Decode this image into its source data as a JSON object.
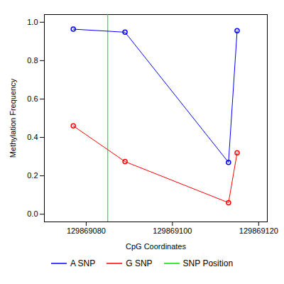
{
  "chart_data": {
    "type": "line",
    "x_label": "CpG Coordinates",
    "y_label": "Methylation Frequency",
    "xlim": [
      129869070.3,
      129869122
    ],
    "xticks": [
      129869080,
      129869100,
      129869120
    ],
    "ylim": [
      -0.04,
      1.04
    ],
    "yticks": [
      {
        "value": 0,
        "label": "0.0"
      },
      0.2,
      0.4,
      0.6,
      0.8,
      {
        "value": 1,
        "label": "1.0"
      }
    ],
    "series": [
      {
        "name": "A SNP",
        "color": "#0000ff",
        "marker": "circle",
        "line_style": "solid",
        "x": [
          129869077,
          129869089,
          129869113,
          129869115
        ],
        "values": [
          0.964,
          0.948,
          0.27,
          0.956
        ]
      },
      {
        "name": "G SNP",
        "color": "#ff0000",
        "marker": "circle",
        "line_style": "solid",
        "x": [
          129869077,
          129869089,
          129869113,
          129869115
        ],
        "values": [
          0.46,
          0.274,
          0.06,
          0.32
        ]
      }
    ],
    "snp_position": {
      "name": "SNP Position",
      "color": "#00dd00",
      "x": 129869085
    },
    "legend": "bottom"
  }
}
